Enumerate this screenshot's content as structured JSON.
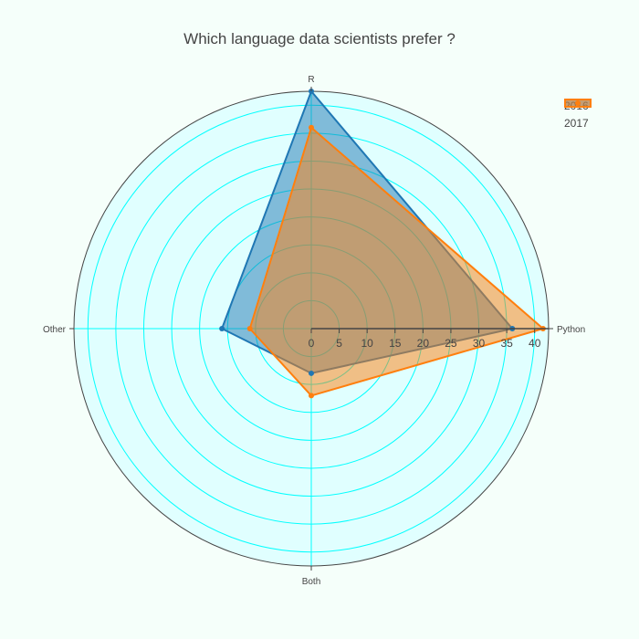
{
  "chart_data": {
    "type": "radar",
    "title": "Which language data scientists prefer ?",
    "angular_categories": [
      "Python",
      "R",
      "Other",
      "Both"
    ],
    "radial_ticks": [
      "0",
      "5",
      "10",
      "15",
      "20",
      "25",
      "30",
      "35",
      "40"
    ],
    "radial_range": [
      0,
      42.5
    ],
    "grid": true,
    "legend_position": "top-right",
    "series": [
      {
        "name": "2016",
        "color": "#1f77b4",
        "fill_opacity": 0.5,
        "values": [
          36,
          42.5,
          16,
          8
        ]
      },
      {
        "name": "2017",
        "color": "#ff7f0e",
        "fill_opacity": 0.5,
        "values": [
          41.5,
          36,
          11,
          12
        ]
      }
    ]
  },
  "colors": {
    "background": "#f5fffa",
    "polar_background": "#e0ffff",
    "grid": "#00ffff",
    "axis_line": "#444444"
  }
}
